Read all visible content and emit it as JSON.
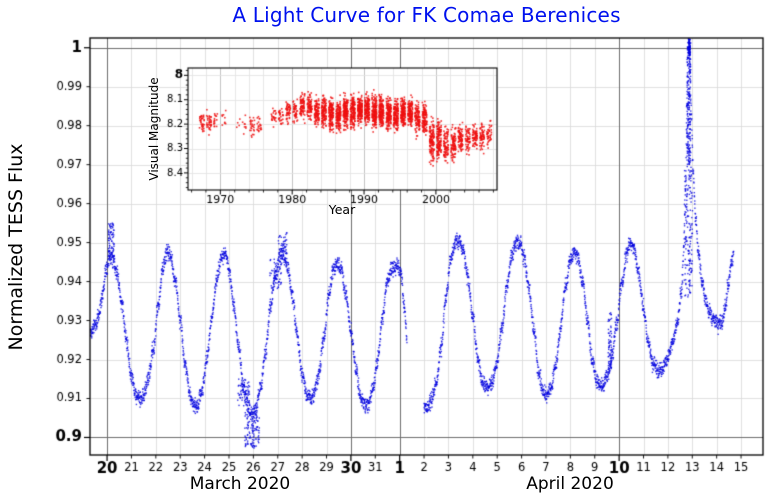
{
  "figure": {
    "title_color": "#0011ee",
    "background": "#ffffff"
  },
  "chart_data": [
    {
      "id": "tess-light-curve",
      "type": "scatter",
      "title": "A Light Curve for FK Comae Berenices",
      "ylabel": "Normalized TESS Flux",
      "month_labels": [
        "March 2020",
        "April 2020"
      ],
      "x_unit_note": "day of month; t=0 corresponds to 2020 March 20",
      "xlim": [
        -0.7,
        26.9
      ],
      "ylim": [
        0.8955,
        1.0025
      ],
      "grid": true,
      "legend": "none",
      "point_color": "#0000e0",
      "sample_step": 0.006,
      "jitter": 0.0017,
      "seed": 20200413,
      "x_ticks": [
        {
          "t": 0,
          "label": "20",
          "major": true
        },
        {
          "t": 1,
          "label": "21",
          "major": false
        },
        {
          "t": 2,
          "label": "22",
          "major": false
        },
        {
          "t": 3,
          "label": "23",
          "major": false
        },
        {
          "t": 4,
          "label": "24",
          "major": false
        },
        {
          "t": 5,
          "label": "25",
          "major": false
        },
        {
          "t": 6,
          "label": "26",
          "major": false
        },
        {
          "t": 7,
          "label": "27",
          "major": false
        },
        {
          "t": 8,
          "label": "28",
          "major": false
        },
        {
          "t": 9,
          "label": "29",
          "major": false
        },
        {
          "t": 10,
          "label": "30",
          "major": true
        },
        {
          "t": 11,
          "label": "31",
          "major": false
        },
        {
          "t": 12,
          "label": "1",
          "major": true
        },
        {
          "t": 13,
          "label": "2",
          "major": false
        },
        {
          "t": 14,
          "label": "3",
          "major": false
        },
        {
          "t": 15,
          "label": "4",
          "major": false
        },
        {
          "t": 16,
          "label": "5",
          "major": false
        },
        {
          "t": 17,
          "label": "6",
          "major": false
        },
        {
          "t": 18,
          "label": "7",
          "major": false
        },
        {
          "t": 19,
          "label": "8",
          "major": false
        },
        {
          "t": 20,
          "label": "9",
          "major": false
        },
        {
          "t": 21,
          "label": "10",
          "major": true
        },
        {
          "t": 22,
          "label": "11",
          "major": false
        },
        {
          "t": 23,
          "label": "12",
          "major": false
        },
        {
          "t": 24,
          "label": "13",
          "major": false
        },
        {
          "t": 25,
          "label": "14",
          "major": false
        },
        {
          "t": 26,
          "label": "15",
          "major": false
        }
      ],
      "y_ticks": [
        {
          "v": 1.0,
          "label": "1",
          "major": true
        },
        {
          "v": 0.99,
          "label": "0.99",
          "major": false
        },
        {
          "v": 0.98,
          "label": "0.98",
          "major": false
        },
        {
          "v": 0.97,
          "label": "0.97",
          "major": false
        },
        {
          "v": 0.96,
          "label": "0.96",
          "major": false
        },
        {
          "v": 0.95,
          "label": "0.95",
          "major": false
        },
        {
          "v": 0.94,
          "label": "0.94",
          "major": false
        },
        {
          "v": 0.93,
          "label": "0.93",
          "major": false
        },
        {
          "v": 0.92,
          "label": "0.92",
          "major": false
        },
        {
          "v": 0.91,
          "label": "0.91",
          "major": false
        },
        {
          "v": 0.9,
          "label": "0.9",
          "major": true
        }
      ],
      "series_segments": [
        [
          [
            -0.7,
            0.9265
          ],
          [
            -0.5,
            0.9285
          ],
          [
            -0.35,
            0.931
          ],
          [
            -0.2,
            0.936
          ],
          [
            -0.05,
            0.943
          ],
          [
            0.1,
            0.946
          ],
          [
            0.25,
            0.9455
          ],
          [
            0.4,
            0.942
          ],
          [
            0.6,
            0.9345
          ],
          [
            0.8,
            0.9245
          ],
          [
            1.0,
            0.9155
          ],
          [
            1.2,
            0.9105
          ],
          [
            1.35,
            0.9098
          ],
          [
            1.5,
            0.911
          ],
          [
            1.7,
            0.9155
          ],
          [
            1.9,
            0.9225
          ],
          [
            2.1,
            0.934
          ],
          [
            2.3,
            0.944
          ],
          [
            2.45,
            0.9478
          ],
          [
            2.6,
            0.9465
          ],
          [
            2.8,
            0.94
          ],
          [
            3.0,
            0.93
          ],
          [
            3.2,
            0.919
          ],
          [
            3.4,
            0.911
          ],
          [
            3.55,
            0.908
          ],
          [
            3.7,
            0.9082
          ],
          [
            3.9,
            0.912
          ],
          [
            4.1,
            0.92
          ],
          [
            4.3,
            0.931
          ],
          [
            4.5,
            0.941
          ],
          [
            4.7,
            0.9465
          ],
          [
            4.85,
            0.9468
          ],
          [
            5.0,
            0.943
          ],
          [
            5.2,
            0.934
          ],
          [
            5.4,
            0.923
          ],
          [
            5.6,
            0.913
          ],
          [
            5.8,
            0.907
          ],
          [
            5.95,
            0.9058
          ],
          [
            6.1,
            0.9072
          ],
          [
            6.3,
            0.913
          ],
          [
            6.5,
            0.922
          ],
          [
            6.7,
            0.933
          ],
          [
            6.9,
            0.942
          ],
          [
            7.1,
            0.9465
          ],
          [
            7.25,
            0.9468
          ],
          [
            7.4,
            0.944
          ],
          [
            7.6,
            0.9365
          ],
          [
            7.8,
            0.926
          ],
          [
            8.0,
            0.916
          ],
          [
            8.2,
            0.9108
          ],
          [
            8.35,
            0.9098
          ],
          [
            8.5,
            0.9115
          ],
          [
            8.7,
            0.917
          ],
          [
            8.9,
            0.926
          ],
          [
            9.1,
            0.937
          ],
          [
            9.3,
            0.9435
          ],
          [
            9.45,
            0.945
          ],
          [
            9.6,
            0.943
          ],
          [
            9.8,
            0.9365
          ],
          [
            10.0,
            0.9275
          ],
          [
            10.2,
            0.9175
          ],
          [
            10.4,
            0.9105
          ],
          [
            10.55,
            0.908
          ],
          [
            10.7,
            0.9085
          ],
          [
            10.9,
            0.9125
          ],
          [
            11.1,
            0.92
          ],
          [
            11.3,
            0.931
          ],
          [
            11.5,
            0.94
          ],
          [
            11.7,
            0.9435
          ],
          [
            11.9,
            0.944
          ],
          [
            12.05,
            0.942
          ],
          [
            12.2,
            0.933
          ],
          [
            12.3,
            0.925
          ]
        ],
        [
          [
            13.0,
            0.908
          ],
          [
            13.15,
            0.9075
          ],
          [
            13.3,
            0.9095
          ],
          [
            13.5,
            0.914
          ],
          [
            13.7,
            0.923
          ],
          [
            13.9,
            0.936
          ],
          [
            14.1,
            0.946
          ],
          [
            14.3,
            0.9505
          ],
          [
            14.45,
            0.9508
          ],
          [
            14.6,
            0.948
          ],
          [
            14.8,
            0.941
          ],
          [
            15.0,
            0.931
          ],
          [
            15.2,
            0.92
          ],
          [
            15.4,
            0.914
          ],
          [
            15.6,
            0.9128
          ],
          [
            15.8,
            0.914
          ],
          [
            16.0,
            0.9195
          ],
          [
            16.2,
            0.9285
          ],
          [
            16.4,
            0.939
          ],
          [
            16.6,
            0.947
          ],
          [
            16.8,
            0.95
          ],
          [
            16.95,
            0.9495
          ],
          [
            17.1,
            0.946
          ],
          [
            17.3,
            0.9385
          ],
          [
            17.5,
            0.928
          ],
          [
            17.7,
            0.917
          ],
          [
            17.9,
            0.9115
          ],
          [
            18.05,
            0.9105
          ],
          [
            18.2,
            0.9125
          ],
          [
            18.4,
            0.9185
          ],
          [
            18.6,
            0.928
          ],
          [
            18.8,
            0.9385
          ],
          [
            19.0,
            0.9455
          ],
          [
            19.15,
            0.9478
          ],
          [
            19.3,
            0.9465
          ],
          [
            19.5,
            0.94
          ],
          [
            19.7,
            0.93
          ],
          [
            19.9,
            0.9195
          ],
          [
            20.1,
            0.914
          ],
          [
            20.3,
            0.913
          ],
          [
            20.5,
            0.9155
          ],
          [
            20.7,
            0.9205
          ],
          [
            20.9,
            0.929
          ],
          [
            21.1,
            0.939
          ],
          [
            21.3,
            0.947
          ],
          [
            21.45,
            0.9498
          ],
          [
            21.6,
            0.9485
          ],
          [
            21.8,
            0.942
          ],
          [
            22.0,
            0.933
          ],
          [
            22.2,
            0.924
          ],
          [
            22.4,
            0.919
          ],
          [
            22.6,
            0.917
          ],
          [
            22.8,
            0.9175
          ],
          [
            23.0,
            0.9205
          ],
          [
            23.2,
            0.9245
          ],
          [
            23.4,
            0.93
          ],
          [
            23.55,
            0.937
          ],
          [
            23.65,
            0.948
          ],
          [
            23.72,
            0.965
          ],
          [
            23.78,
            0.985
          ],
          [
            23.84,
            1.001
          ],
          [
            23.9,
            0.998
          ],
          [
            23.96,
            0.983
          ],
          [
            24.04,
            0.968
          ],
          [
            24.14,
            0.956
          ],
          [
            24.26,
            0.947
          ],
          [
            24.4,
            0.94
          ],
          [
            24.55,
            0.935
          ],
          [
            24.7,
            0.932
          ],
          [
            24.85,
            0.9305
          ],
          [
            25.0,
            0.9295
          ],
          [
            25.1,
            0.929
          ],
          [
            25.2,
            0.9295
          ],
          [
            25.35,
            0.933
          ],
          [
            25.5,
            0.94
          ],
          [
            25.62,
            0.9455
          ],
          [
            25.7,
            0.9468
          ]
        ]
      ],
      "scatter_clouds": [
        {
          "x": 0.18,
          "dx": 0.12,
          "ymin": 0.9465,
          "ymax": 0.9552,
          "n": 70
        },
        {
          "x": 5.6,
          "dx": 0.25,
          "ymin": 0.908,
          "ymax": 0.915,
          "n": 60
        },
        {
          "x": 5.95,
          "dx": 0.3,
          "ymin": 0.8972,
          "ymax": 0.9065,
          "n": 110
        },
        {
          "x": 6.9,
          "dx": 0.25,
          "ymin": 0.938,
          "ymax": 0.946,
          "n": 50
        },
        {
          "x": 7.2,
          "dx": 0.18,
          "ymin": 0.9468,
          "ymax": 0.9525,
          "n": 45
        },
        {
          "x": 20.62,
          "dx": 0.07,
          "ymin": 0.917,
          "ymax": 0.932,
          "n": 60
        },
        {
          "x": 23.84,
          "dx": 0.17,
          "ymin": 0.936,
          "ymax": 0.97,
          "n": 160
        },
        {
          "x": 23.86,
          "dx": 0.08,
          "ymin": 0.97,
          "ymax": 1.0015,
          "n": 220
        },
        {
          "x": 23.88,
          "dx": 0.035,
          "ymin": 0.998,
          "ymax": 1.0022,
          "n": 60
        }
      ]
    },
    {
      "id": "historical-visual-magnitude-inset",
      "type": "scatter",
      "xlabel": "Year",
      "ylabel": "Visual Magnitude",
      "xlim": [
        1965.5,
        2008.5
      ],
      "ylim": [
        7.97,
        8.47
      ],
      "y_inverted": true,
      "grid": true,
      "point_color": "#ee1111",
      "seed": 1986,
      "x_major_ticks": [
        1970,
        1980,
        1990,
        2000
      ],
      "x_minor_step": 2,
      "y_ticks": [
        {
          "v": 8.0,
          "label": "8",
          "major": true
        },
        {
          "v": 8.1,
          "label": "8.1",
          "major": false
        },
        {
          "v": 8.2,
          "label": "8.2",
          "major": false
        },
        {
          "v": 8.3,
          "label": "8.3",
          "major": false
        },
        {
          "v": 8.4,
          "label": "8.4",
          "major": false
        }
      ],
      "clusters": [
        {
          "years": [
            1967,
            1968
          ],
          "mean": 8.19,
          "sd": 0.035,
          "n": 70
        },
        {
          "years": [
            1969,
            1970
          ],
          "mean": 8.18,
          "sd": 0.03,
          "n": 25
        },
        {
          "years": [
            1972,
            1973
          ],
          "mean": 8.2,
          "sd": 0.03,
          "n": 12
        },
        {
          "years": [
            1974,
            1975
          ],
          "mean": 8.21,
          "sd": 0.04,
          "n": 45
        },
        {
          "years": [
            1977,
            1978
          ],
          "mean": 8.17,
          "sd": 0.035,
          "n": 50
        },
        {
          "years": [
            1979,
            1980
          ],
          "mean": 8.15,
          "sd": 0.04,
          "n": 90
        },
        {
          "years": [
            1981,
            1982
          ],
          "mean": 8.13,
          "sd": 0.045,
          "n": 160
        },
        {
          "years": [
            1983,
            1984
          ],
          "mean": 8.15,
          "sd": 0.05,
          "n": 220
        },
        {
          "years": [
            1985,
            1986
          ],
          "mean": 8.16,
          "sd": 0.055,
          "n": 280
        },
        {
          "years": [
            1987,
            1988
          ],
          "mean": 8.15,
          "sd": 0.055,
          "n": 320
        },
        {
          "years": [
            1989,
            1990
          ],
          "mean": 8.14,
          "sd": 0.05,
          "n": 320
        },
        {
          "years": [
            1991,
            1992
          ],
          "mean": 8.15,
          "sd": 0.055,
          "n": 330
        },
        {
          "years": [
            1993,
            1994
          ],
          "mean": 8.16,
          "sd": 0.055,
          "n": 300
        },
        {
          "years": [
            1995,
            1996
          ],
          "mean": 8.15,
          "sd": 0.05,
          "n": 280
        },
        {
          "years": [
            1997,
            1998
          ],
          "mean": 8.18,
          "sd": 0.05,
          "n": 220
        },
        {
          "years": [
            1999,
            2000
          ],
          "mean": 8.27,
          "sd": 0.07,
          "n": 260
        },
        {
          "years": [
            2001,
            2002
          ],
          "mean": 8.28,
          "sd": 0.06,
          "n": 180
        },
        {
          "years": [
            2003,
            2004
          ],
          "mean": 8.26,
          "sd": 0.05,
          "n": 140
        },
        {
          "years": [
            2005,
            2006
          ],
          "mean": 8.25,
          "sd": 0.045,
          "n": 130
        },
        {
          "years": [
            2007,
            2007
          ],
          "mean": 8.24,
          "sd": 0.04,
          "n": 40
        }
      ]
    }
  ]
}
